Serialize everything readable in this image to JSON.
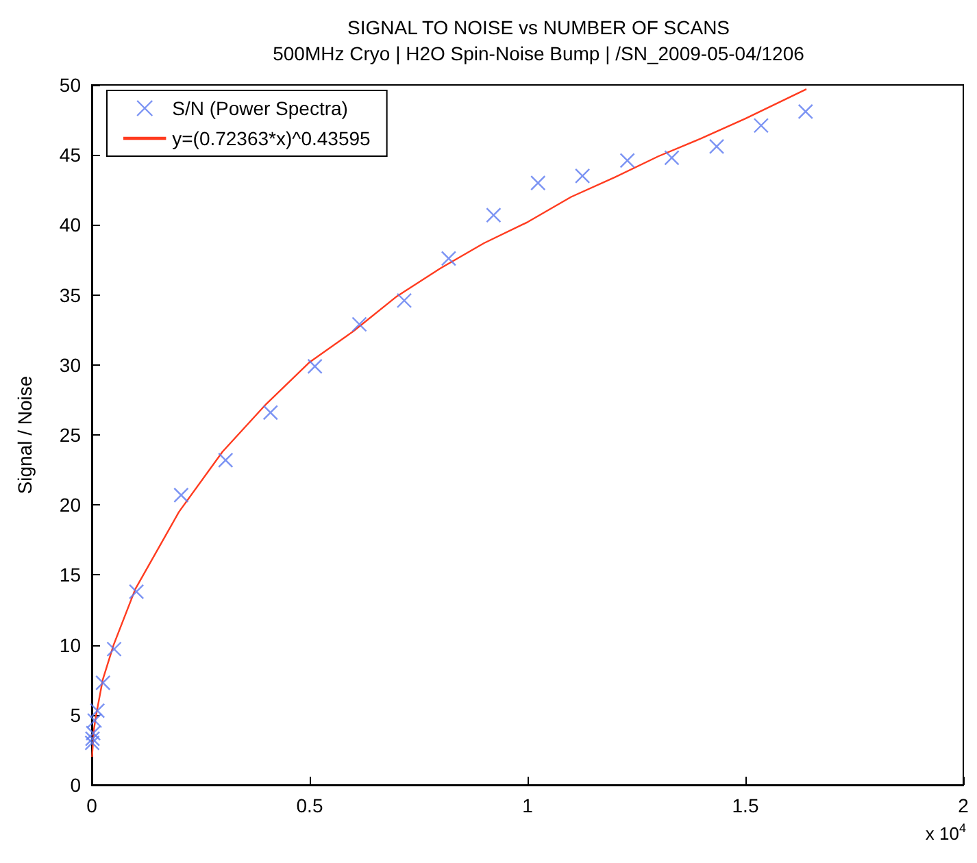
{
  "chart_data": {
    "type": "scatter",
    "title": "SIGNAL TO NOISE vs NUMBER OF SCANS",
    "subtitle": "500MHz Cryo | H2O Spin-Noise Bump | /SN_2009-05-04/1206",
    "ylabel": "Signal / Noise",
    "annotations": [
      "x 10$^{4}$"
    ],
    "xlim": [
      0,
      2
    ],
    "xticks": [
      0,
      0.5,
      1,
      1.5,
      2
    ],
    "ylim": [
      0,
      50
    ],
    "yticks": [
      0,
      5,
      10,
      15,
      20,
      25,
      30,
      35,
      40,
      45,
      50
    ],
    "grid": false,
    "legend": "top left",
    "series": [
      {
        "name": "S/N (Power Spectra)",
        "marker": "cross",
        "color": "#5a78f0",
        "x": [
          0.0008,
          0.0016,
          0.0032,
          0.0064,
          0.0128,
          0.0256,
          0.0512,
          0.1024,
          0.205,
          0.307,
          0.41,
          0.512,
          0.614,
          0.717,
          0.819,
          0.922,
          1.024,
          1.126,
          1.229,
          1.331,
          1.434,
          1.536,
          1.638
        ],
        "values": [
          3.0,
          3.3,
          3.7,
          4.6,
          5.3,
          7.3,
          9.7,
          13.8,
          20.7,
          23.2,
          26.6,
          29.9,
          32.9,
          34.6,
          37.6,
          40.7,
          43.0,
          43.5,
          44.6,
          44.8,
          45.6,
          47.1,
          48.1
        ]
      },
      {
        "name": "y=(0.72363*x)^0.43595",
        "type": "line",
        "marker": "none",
        "line_style": "solid",
        "color": "#ff3b1f",
        "x": [
          0.0005,
          0.005,
          0.01,
          0.025,
          0.05,
          0.1,
          0.2,
          0.3,
          0.4,
          0.5,
          0.6,
          0.7,
          0.8,
          0.9,
          1.0,
          1.1,
          1.2,
          1.3,
          1.4,
          1.5,
          1.64
        ],
        "values": [
          2.0,
          4.0,
          5.0,
          7.5,
          10.0,
          14.0,
          19.5,
          23.8,
          27.2,
          30.2,
          32.4,
          34.9,
          36.9,
          38.7,
          40.2,
          42.0,
          43.4,
          44.9,
          46.2,
          47.6,
          49.7
        ]
      }
    ]
  }
}
